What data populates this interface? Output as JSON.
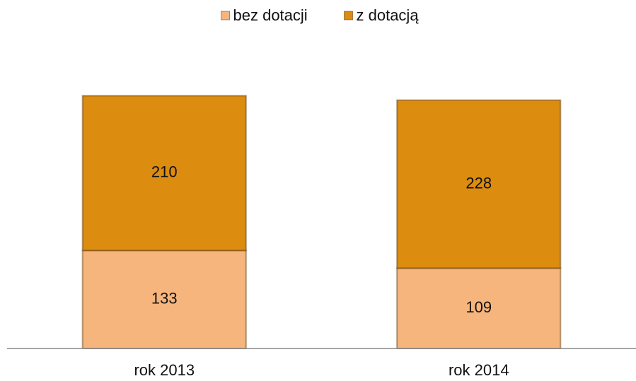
{
  "chart_data": {
    "type": "stacked_bar",
    "categories": [
      "rok 2013",
      "rok 2014"
    ],
    "series": [
      {
        "name": "bez dotacji",
        "color": "#f6b57c",
        "values": [
          133,
          109
        ]
      },
      {
        "name": "z dotacją",
        "color": "#dc8c0e",
        "values": [
          210,
          228
        ]
      }
    ],
    "ylim": [
      0,
      400
    ]
  }
}
